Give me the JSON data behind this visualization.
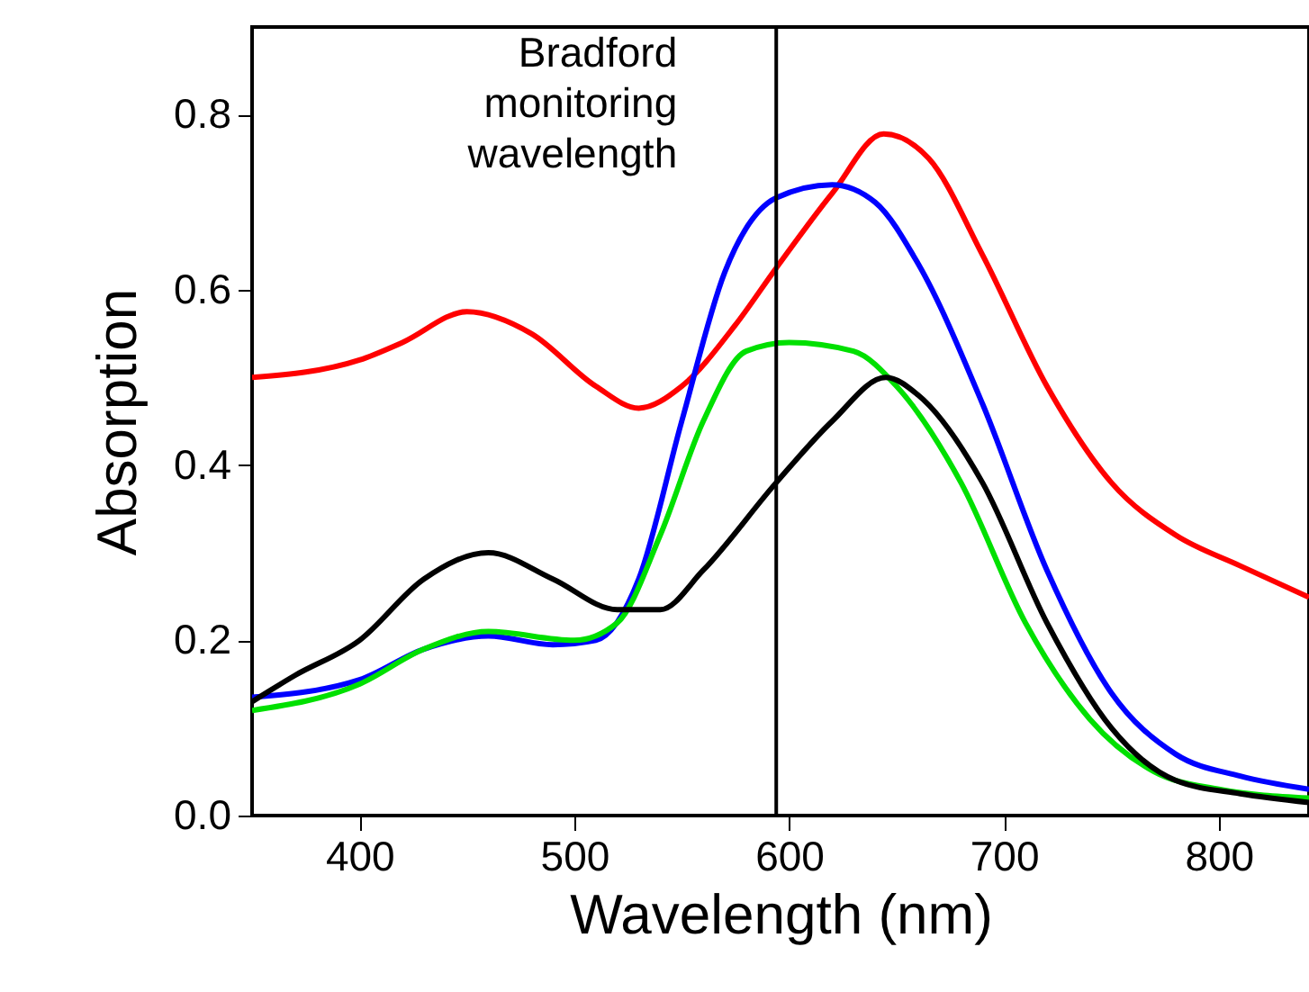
{
  "chart_data": {
    "type": "line",
    "xlabel": "Wavelength (nm)",
    "ylabel": "Absorption",
    "xlim": [
      350,
      842
    ],
    "ylim": [
      0,
      0.9
    ],
    "xticks": [
      400,
      500,
      600,
      700,
      800
    ],
    "yticks": [
      {
        "value": 0,
        "label": "0.0"
      },
      {
        "value": 0.2,
        "label": "0.2"
      },
      {
        "value": 0.4,
        "label": "0.4"
      },
      {
        "value": 0.6,
        "label": "0.6"
      },
      {
        "value": 0.8,
        "label": "0.8"
      }
    ],
    "grid": false,
    "marker": "none",
    "line_style": "solid",
    "ref_lines": [
      {
        "axis": "x",
        "value": 594,
        "label": "Bradford\nmonitoring\nwavelength",
        "color": "#000000"
      }
    ],
    "series": [
      {
        "color": "#ff0000",
        "x": [
          350,
          400,
          420,
          450,
          480,
          510,
          530,
          550,
          575,
          594,
          620,
          644,
          665,
          690,
          720,
          750,
          780,
          810,
          842
        ],
        "values": [
          0.5,
          0.52,
          0.54,
          0.575,
          0.55,
          0.49,
          0.465,
          0.49,
          0.56,
          0.625,
          0.71,
          0.778,
          0.75,
          0.64,
          0.49,
          0.38,
          0.32,
          0.285,
          0.249
        ]
      },
      {
        "color": "#0000ff",
        "x": [
          350,
          400,
          430,
          460,
          490,
          510,
          530,
          550,
          570,
          594,
          620,
          640,
          660,
          690,
          720,
          750,
          780,
          810,
          842
        ],
        "values": [
          0.135,
          0.155,
          0.19,
          0.205,
          0.195,
          0.2,
          0.27,
          0.45,
          0.62,
          0.705,
          0.72,
          0.7,
          0.63,
          0.47,
          0.28,
          0.14,
          0.07,
          0.045,
          0.03
        ]
      },
      {
        "color": "#00e000",
        "x": [
          350,
          400,
          430,
          460,
          500,
          520,
          540,
          560,
          580,
          600,
          630,
          650,
          680,
          710,
          740,
          770,
          800,
          842
        ],
        "values": [
          0.12,
          0.15,
          0.19,
          0.21,
          0.2,
          0.22,
          0.32,
          0.45,
          0.53,
          0.54,
          0.53,
          0.49,
          0.38,
          0.22,
          0.11,
          0.05,
          0.03,
          0.02
        ]
      },
      {
        "color": "#000000",
        "x": [
          350,
          370,
          400,
          430,
          460,
          490,
          520,
          540,
          560,
          594,
          620,
          645,
          660,
          690,
          720,
          750,
          780,
          810,
          842
        ],
        "values": [
          0.13,
          0.16,
          0.2,
          0.27,
          0.3,
          0.27,
          0.235,
          0.235,
          0.28,
          0.38,
          0.45,
          0.5,
          0.48,
          0.38,
          0.22,
          0.1,
          0.04,
          0.025,
          0.015
        ]
      }
    ]
  }
}
